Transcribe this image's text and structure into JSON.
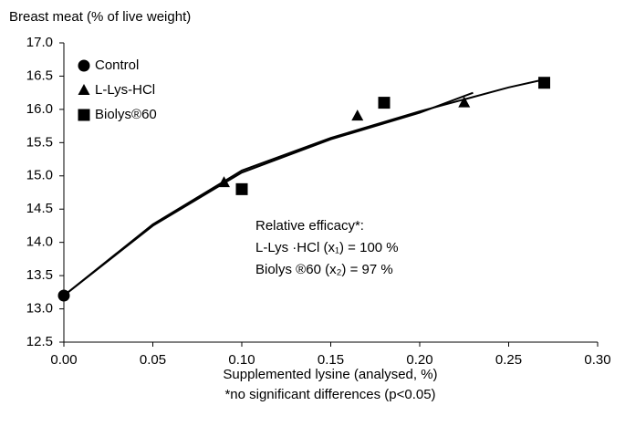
{
  "chart_data": {
    "type": "scatter",
    "y_label": "Breast meat (% of live weight)",
    "x_label": "Supplemented lysine (analysed, %)",
    "footnote": "*no significant differences (p<0.05)",
    "annotations": [
      "Relative efficacy*:",
      "L-Lys ·HCl (x₁) = 100 %",
      "Biolys ®60 (x₂) = 97 %"
    ],
    "xlim": [
      0,
      0.3
    ],
    "xticks": [
      {
        "value": 0,
        "label": "0.00"
      },
      0.05,
      {
        "value": 0.1,
        "label": "0.10"
      },
      0.15,
      {
        "value": 0.2,
        "label": "0.20"
      },
      0.25,
      {
        "value": 0.3,
        "label": "0.30"
      }
    ],
    "ylim": [
      12.5,
      17
    ],
    "yticks": [
      12.5,
      {
        "value": 13,
        "label": "13.0"
      },
      13.5,
      {
        "value": 14,
        "label": "14.0"
      },
      14.5,
      {
        "value": 15,
        "label": "15.0"
      },
      15.5,
      {
        "value": 16,
        "label": "16.0"
      },
      16.5,
      {
        "value": 17,
        "label": "17.0"
      }
    ],
    "grid": false,
    "legend": "upper left",
    "series": [
      {
        "name": "Control",
        "marker": "circle",
        "color": "#000000",
        "x": [
          0
        ],
        "values": [
          13.2
        ]
      },
      {
        "name": "L-Lys-HCl",
        "marker": "triangle",
        "color": "#000000",
        "x": [
          0.09,
          0.165,
          0.225
        ],
        "values": [
          14.9,
          15.9,
          16.1
        ]
      },
      {
        "name": "Biolys®60",
        "marker": "square",
        "color": "#000000",
        "x": [
          0.1,
          0.18,
          0.27
        ],
        "values": [
          14.8,
          16.1,
          16.4
        ]
      }
    ],
    "fit_lines": [
      {
        "color": "#000000",
        "x": [
          0,
          0.05,
          0.1,
          0.15,
          0.2,
          0.23
        ],
        "values": [
          13.2,
          14.25,
          15.05,
          15.55,
          15.95,
          16.25
        ]
      },
      {
        "color": "#000000",
        "x": [
          0,
          0.05,
          0.1,
          0.15,
          0.2,
          0.25,
          0.27
        ],
        "values": [
          13.2,
          14.27,
          15.08,
          15.57,
          15.97,
          16.33,
          16.45
        ]
      }
    ]
  }
}
